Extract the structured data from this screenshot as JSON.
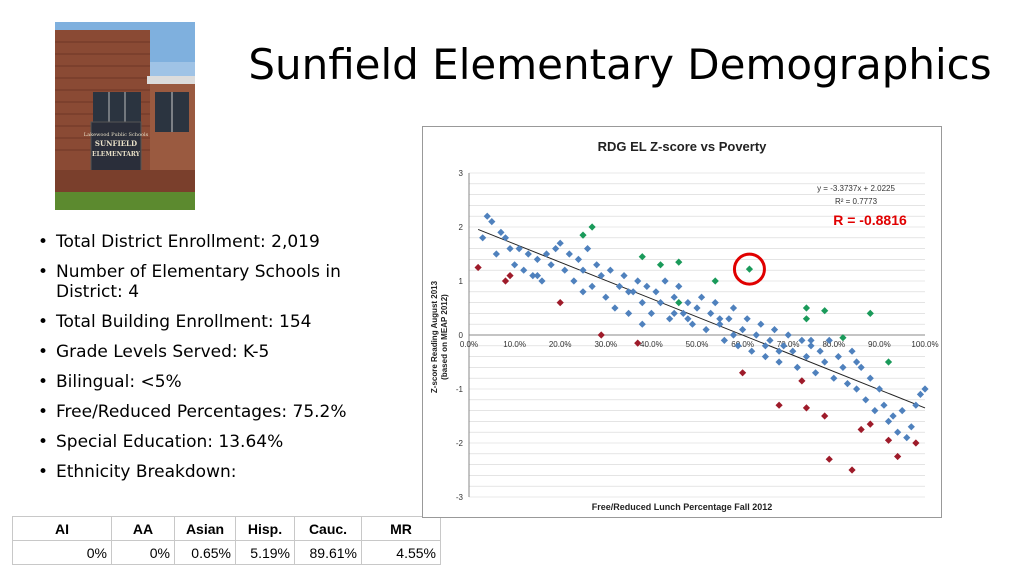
{
  "slide": {
    "title": "Sunfield Elementary Demographics",
    "photo_sign_lines": [
      "Lakewood Public Schools",
      "SUNFIELD",
      "ELEMENTARY"
    ],
    "bullets": [
      "Total District Enrollment:  2,019",
      "Number of Elementary Schools in District:  4",
      "Total Building Enrollment:  154",
      "Grade Levels Served:  K-5",
      "Bilingual:  <5%",
      "Free/Reduced Percentages:   75.2%",
      "Special Education:   13.64%",
      "Ethnicity Breakdown:"
    ],
    "ethnicity_table": {
      "headers": [
        "AI",
        "AA",
        "Asian",
        "Hisp.",
        "Cauc.",
        "MR"
      ],
      "values": [
        "0%",
        "0%",
        "0.65%",
        "5.19%",
        "89.61%",
        "4.55%"
      ]
    }
  },
  "colors": {
    "blue": "#4f81bd",
    "green": "#1a9a5a",
    "red": "#9e1b2a",
    "highlight": "#e00000"
  },
  "chart_data": {
    "type": "scatter",
    "title": "RDG EL Z-score vs Poverty",
    "xlabel": "Free/Reduced Lunch Percentage Fall 2012",
    "ylabel": "Z-score Reading August 2013",
    "ylabel2": "(based on MEAP 2012)",
    "xlim": [
      0,
      1
    ],
    "ylim": [
      -3,
      3
    ],
    "x_ticks": [
      "0.0%",
      "10.0%",
      "20.0%",
      "30.0%",
      "40.0%",
      "50.0%",
      "60.0%",
      "70.0%",
      "80.0%",
      "90.0%",
      "100.0%"
    ],
    "y_ticks": [
      "3",
      "2",
      "1",
      "0",
      "-1",
      "-2",
      "-3"
    ],
    "equation": "y = -3.3737x + 2.0225",
    "r2": "R² = 0.7773",
    "r_label": "R = -0.8816",
    "trendline": {
      "slope": -3.3737,
      "intercept": 2.0225
    },
    "highlight_point": [
      0.615,
      1.22
    ],
    "series": [
      {
        "color": "blue",
        "points": [
          [
            0.03,
            1.8
          ],
          [
            0.04,
            2.2
          ],
          [
            0.05,
            2.1
          ],
          [
            0.06,
            1.5
          ],
          [
            0.07,
            1.9
          ],
          [
            0.08,
            1.8
          ],
          [
            0.09,
            1.6
          ],
          [
            0.1,
            1.3
          ],
          [
            0.11,
            1.6
          ],
          [
            0.12,
            1.2
          ],
          [
            0.13,
            1.5
          ],
          [
            0.14,
            1.1
          ],
          [
            0.15,
            1.4
          ],
          [
            0.16,
            1.0
          ],
          [
            0.17,
            1.5
          ],
          [
            0.18,
            1.3
          ],
          [
            0.19,
            1.6
          ],
          [
            0.2,
            1.7
          ],
          [
            0.21,
            1.2
          ],
          [
            0.22,
            1.5
          ],
          [
            0.23,
            1.0
          ],
          [
            0.24,
            1.4
          ],
          [
            0.25,
            1.2
          ],
          [
            0.26,
            1.6
          ],
          [
            0.27,
            0.9
          ],
          [
            0.28,
            1.3
          ],
          [
            0.29,
            1.1
          ],
          [
            0.3,
            0.7
          ],
          [
            0.31,
            1.2
          ],
          [
            0.32,
            0.5
          ],
          [
            0.33,
            0.9
          ],
          [
            0.34,
            1.1
          ],
          [
            0.35,
            0.4
          ],
          [
            0.36,
            0.8
          ],
          [
            0.37,
            1.0
          ],
          [
            0.38,
            0.6
          ],
          [
            0.39,
            0.9
          ],
          [
            0.4,
            0.4
          ],
          [
            0.41,
            0.8
          ],
          [
            0.42,
            0.6
          ],
          [
            0.43,
            1.0
          ],
          [
            0.44,
            0.3
          ],
          [
            0.45,
            0.7
          ],
          [
            0.46,
            0.9
          ],
          [
            0.47,
            0.4
          ],
          [
            0.48,
            0.6
          ],
          [
            0.49,
            0.2
          ],
          [
            0.5,
            0.5
          ],
          [
            0.51,
            0.7
          ],
          [
            0.52,
            0.1
          ],
          [
            0.53,
            0.4
          ],
          [
            0.54,
            0.6
          ],
          [
            0.55,
            0.2
          ],
          [
            0.56,
            -0.1
          ],
          [
            0.57,
            0.3
          ],
          [
            0.58,
            0.5
          ],
          [
            0.59,
            -0.2
          ],
          [
            0.6,
            0.1
          ],
          [
            0.61,
            0.3
          ],
          [
            0.62,
            -0.3
          ],
          [
            0.63,
            0.0
          ],
          [
            0.64,
            0.2
          ],
          [
            0.65,
            -0.4
          ],
          [
            0.66,
            -0.1
          ],
          [
            0.67,
            0.1
          ],
          [
            0.68,
            -0.5
          ],
          [
            0.69,
            -0.2
          ],
          [
            0.7,
            0.0
          ],
          [
            0.71,
            -0.3
          ],
          [
            0.72,
            -0.6
          ],
          [
            0.73,
            -0.1
          ],
          [
            0.74,
            -0.4
          ],
          [
            0.75,
            -0.2
          ],
          [
            0.76,
            -0.7
          ],
          [
            0.77,
            -0.3
          ],
          [
            0.78,
            -0.5
          ],
          [
            0.79,
            -0.1
          ],
          [
            0.8,
            -0.8
          ],
          [
            0.81,
            -0.4
          ],
          [
            0.82,
            -0.6
          ],
          [
            0.83,
            -0.9
          ],
          [
            0.84,
            -0.3
          ],
          [
            0.85,
            -1.0
          ],
          [
            0.86,
            -0.6
          ],
          [
            0.87,
            -1.2
          ],
          [
            0.88,
            -0.8
          ],
          [
            0.89,
            -1.4
          ],
          [
            0.9,
            -1.0
          ],
          [
            0.91,
            -1.3
          ],
          [
            0.92,
            -1.6
          ],
          [
            0.93,
            -1.5
          ],
          [
            0.94,
            -1.8
          ],
          [
            0.95,
            -1.4
          ],
          [
            0.96,
            -1.9
          ],
          [
            0.97,
            -1.7
          ],
          [
            0.98,
            -1.3
          ],
          [
            0.99,
            -1.1
          ],
          [
            1.0,
            -1.0
          ],
          [
            0.15,
            1.1
          ],
          [
            0.25,
            0.8
          ],
          [
            0.35,
            0.8
          ],
          [
            0.45,
            0.4
          ],
          [
            0.55,
            0.3
          ],
          [
            0.65,
            -0.2
          ],
          [
            0.75,
            -0.1
          ],
          [
            0.85,
            -0.5
          ],
          [
            0.38,
            0.2
          ],
          [
            0.48,
            0.3
          ],
          [
            0.58,
            0.0
          ],
          [
            0.68,
            -0.3
          ]
        ]
      },
      {
        "color": "green",
        "points": [
          [
            0.25,
            1.85
          ],
          [
            0.27,
            2.0
          ],
          [
            0.38,
            1.45
          ],
          [
            0.46,
            1.35
          ],
          [
            0.46,
            0.6
          ],
          [
            0.54,
            1.0
          ],
          [
            0.74,
            0.5
          ],
          [
            0.74,
            0.3
          ],
          [
            0.78,
            0.45
          ],
          [
            0.82,
            -0.05
          ],
          [
            0.88,
            0.4
          ],
          [
            0.92,
            -0.5
          ],
          [
            0.615,
            1.22
          ],
          [
            0.42,
            1.3
          ]
        ]
      },
      {
        "color": "red",
        "points": [
          [
            0.02,
            1.25
          ],
          [
            0.08,
            1.0
          ],
          [
            0.09,
            1.1
          ],
          [
            0.2,
            0.6
          ],
          [
            0.29,
            0.0
          ],
          [
            0.37,
            -0.15
          ],
          [
            0.6,
            -0.7
          ],
          [
            0.68,
            -1.3
          ],
          [
            0.73,
            -0.85
          ],
          [
            0.74,
            -1.35
          ],
          [
            0.78,
            -1.5
          ],
          [
            0.79,
            -2.3
          ],
          [
            0.84,
            -2.5
          ],
          [
            0.86,
            -1.75
          ],
          [
            0.88,
            -1.65
          ],
          [
            0.92,
            -1.95
          ],
          [
            0.94,
            -2.25
          ],
          [
            0.98,
            -2.0
          ]
        ]
      }
    ]
  }
}
